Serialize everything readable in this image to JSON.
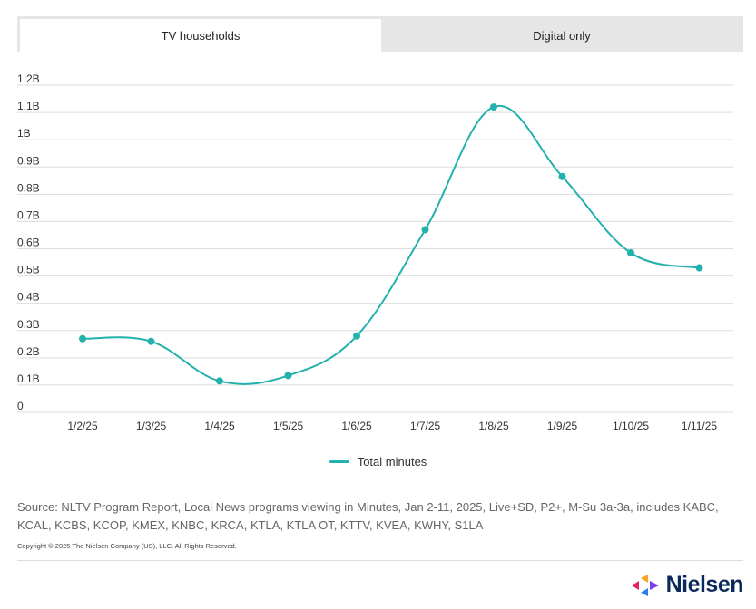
{
  "tabs": [
    {
      "label": "TV households",
      "active": true
    },
    {
      "label": "Digital only",
      "active": false
    }
  ],
  "colors": {
    "series": "#22b1ad",
    "grid": "#dddddd",
    "tab_bg": "#e6e6e6"
  },
  "chart_data": {
    "type": "line",
    "title": "",
    "xlabel": "",
    "ylabel": "",
    "categories": [
      "1/2/25",
      "1/3/25",
      "1/4/25",
      "1/5/25",
      "1/6/25",
      "1/7/25",
      "1/8/25",
      "1/9/25",
      "1/10/25",
      "1/11/25"
    ],
    "series": [
      {
        "name": "Total minutes",
        "values": [
          0.27,
          0.26,
          0.115,
          0.135,
          0.28,
          0.67,
          1.12,
          0.865,
          0.585,
          0.53
        ]
      }
    ],
    "ylim": [
      0,
      1.2
    ],
    "y_ticks": [
      0,
      0.1,
      0.2,
      0.3,
      0.4,
      0.5,
      0.6,
      0.7,
      0.8,
      0.9,
      1.0,
      1.1,
      1.2
    ],
    "y_tick_labels": [
      "0",
      "0.1B",
      "0.2B",
      "0.3B",
      "0.4B",
      "0.5B",
      "0.6B",
      "0.7B",
      "0.8B",
      "0.9B",
      "1B",
      "1.1B",
      "1.2B"
    ],
    "grid": true,
    "legend_position": "bottom"
  },
  "legend": {
    "label": "Total minutes"
  },
  "source": {
    "text": "Source: NLTV Program Report, Local News programs viewing in Minutes, Jan 2-11, 2025, Live+SD, P2+, M-Su 3a-3a, includes KABC, KCAL, KCBS, KCOP, KMEX, KNBC, KRCA, KTLA, KTLA OT, KTTV, KVEA, KWHY, S1LA",
    "copyright": "Copyright © 2025 The Nielsen Company (US), LLC. All Rights Reserved."
  },
  "logo": {
    "text": "Nielsen"
  }
}
